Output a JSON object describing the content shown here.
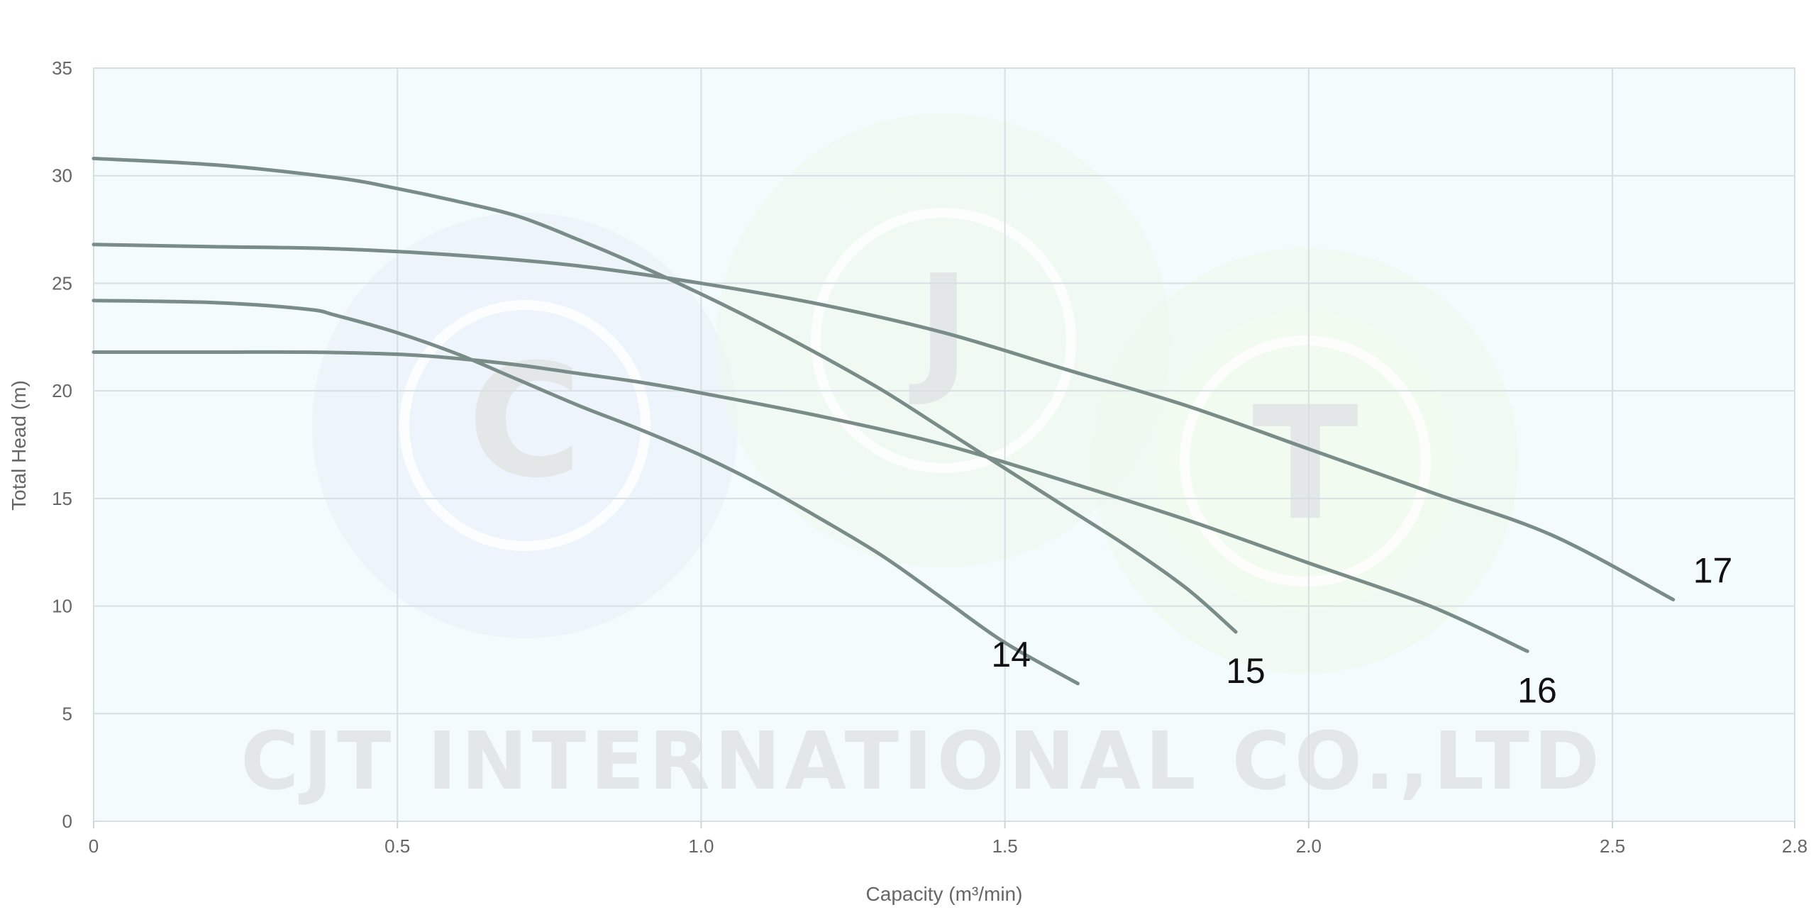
{
  "chart_data": {
    "type": "line",
    "xlabel": "Capacity (m³/min)",
    "ylabel": "Total Head (m)",
    "xlim": [
      0,
      2.8
    ],
    "ylim": [
      0,
      35
    ],
    "x_ticks": [
      "0",
      "0.5",
      "1.0",
      "1.5",
      "2.0",
      "2.5",
      "2.8"
    ],
    "x_tick_values": [
      0,
      0.5,
      1.0,
      1.5,
      2.0,
      2.5,
      2.8
    ],
    "y_ticks": [
      "0",
      "5",
      "10",
      "15",
      "20",
      "25",
      "30",
      "35"
    ],
    "y_tick_values": [
      0,
      5,
      10,
      15,
      20,
      25,
      30,
      35
    ],
    "grid": true,
    "series": [
      {
        "name": "14",
        "x": [
          0,
          0.2,
          0.35,
          0.4,
          0.5,
          0.6,
          0.7,
          0.8,
          0.9,
          1.0,
          1.1,
          1.2,
          1.3,
          1.4,
          1.5,
          1.62
        ],
        "y": [
          24.2,
          24.1,
          23.8,
          23.5,
          22.7,
          21.7,
          20.5,
          19.3,
          18.2,
          17.0,
          15.6,
          14.0,
          12.3,
          10.3,
          8.3,
          6.4
        ]
      },
      {
        "name": "15",
        "x": [
          0,
          0.2,
          0.4,
          0.5,
          0.6,
          0.7,
          0.8,
          0.9,
          1.0,
          1.1,
          1.2,
          1.3,
          1.4,
          1.5,
          1.6,
          1.7,
          1.8,
          1.88
        ],
        "y": [
          30.8,
          30.5,
          29.9,
          29.4,
          28.8,
          28.1,
          27.0,
          25.8,
          24.5,
          23.1,
          21.6,
          20.0,
          18.2,
          16.4,
          14.6,
          12.8,
          10.8,
          8.8
        ]
      },
      {
        "name": "16",
        "x": [
          0,
          0.2,
          0.35,
          0.5,
          0.6,
          0.7,
          0.8,
          0.9,
          1.0,
          1.2,
          1.4,
          1.6,
          1.8,
          2.0,
          2.2,
          2.36
        ],
        "y": [
          21.8,
          21.8,
          21.8,
          21.7,
          21.5,
          21.2,
          20.8,
          20.4,
          19.9,
          18.8,
          17.5,
          15.8,
          14.0,
          12.0,
          10.0,
          7.9
        ]
      },
      {
        "name": "17",
        "x": [
          0,
          0.2,
          0.4,
          0.6,
          0.8,
          1.0,
          1.2,
          1.4,
          1.6,
          1.8,
          2.0,
          2.2,
          2.4,
          2.6
        ],
        "y": [
          26.8,
          26.7,
          26.6,
          26.3,
          25.8,
          25.0,
          24.0,
          22.7,
          21.0,
          19.3,
          17.3,
          15.3,
          13.3,
          10.3
        ]
      }
    ]
  },
  "watermark": {
    "text": "CJT INTERNATIONAL CO.,LTD",
    "letters": [
      "C",
      "J",
      "T"
    ]
  },
  "colors": {
    "plot_background": "#f3fbfd",
    "grid": "#d6dfe2",
    "curve": "#7a8c88",
    "axis": "#c8d6da"
  }
}
